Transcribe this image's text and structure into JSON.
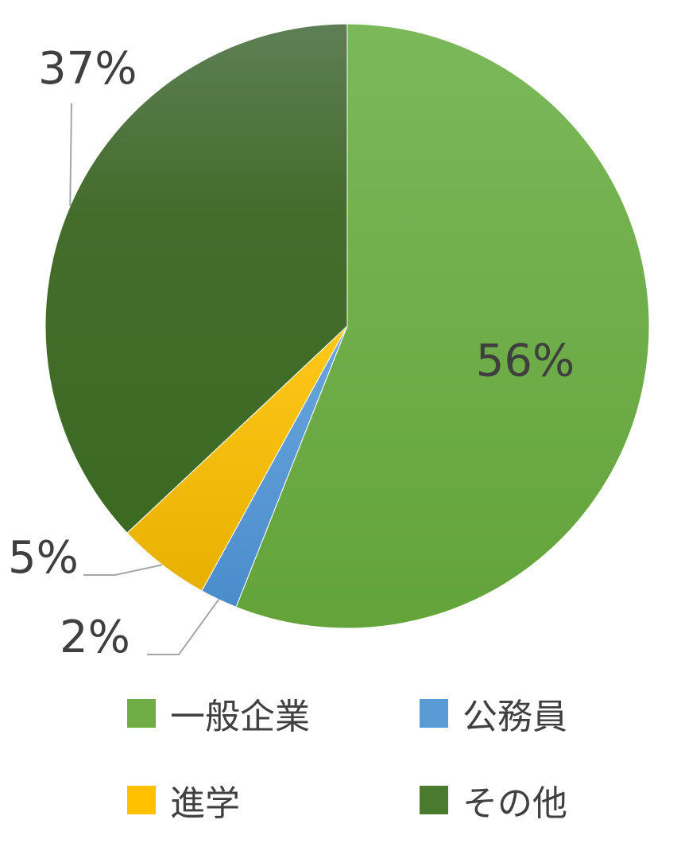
{
  "chart_data": {
    "type": "pie",
    "categories": [
      "一般企業",
      "公務員",
      "進学",
      "その他"
    ],
    "values": [
      56,
      2,
      5,
      37
    ],
    "labels": [
      "56%",
      "2%",
      "5%",
      "37%"
    ],
    "colors": [
      "#70ad47",
      "#5b9bd5",
      "#ffc000",
      "#4a7a2e"
    ],
    "legend_position": "bottom"
  }
}
